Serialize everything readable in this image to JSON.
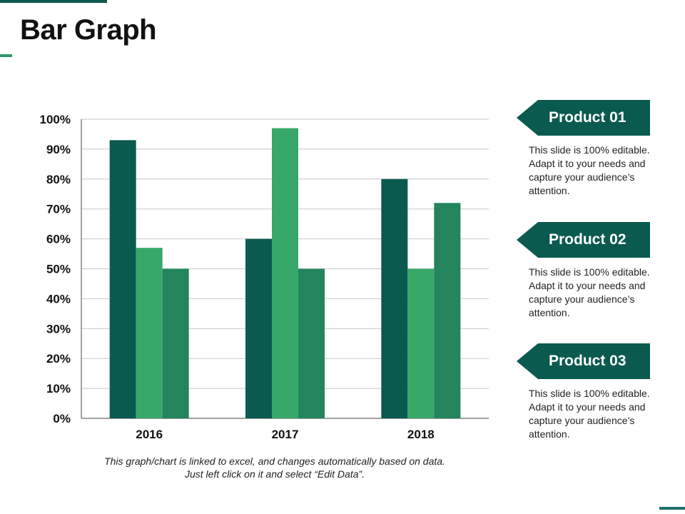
{
  "slide": {
    "title": "Bar Graph",
    "footnote": "This graph/chart is linked to excel, and changes automatically based on data. Just left click on it and select “Edit Data”."
  },
  "legend": [
    {
      "label": "Product 01",
      "color": "#0b5a4f",
      "description": "This slide is 100% editable. Adapt it to your needs and capture your audience’s attention."
    },
    {
      "label": "Product 02",
      "color": "#37a86a",
      "description": "This slide is 100% editable. Adapt it to your needs and capture your audience’s attention."
    },
    {
      "label": "Product 03",
      "color": "#23845e",
      "description": "This slide is 100% editable. Adapt it to your needs and capture your audience’s attention."
    }
  ],
  "chart_data": {
    "type": "bar",
    "title": "",
    "xlabel": "",
    "ylabel": "",
    "categories": [
      "2016",
      "2017",
      "2018"
    ],
    "series": [
      {
        "name": "Product 01",
        "values": [
          93,
          60,
          80
        ],
        "color": "#0b5a4f"
      },
      {
        "name": "Product 02",
        "values": [
          57,
          97,
          50
        ],
        "color": "#37a86a"
      },
      {
        "name": "Product 03",
        "values": [
          50,
          50,
          72
        ],
        "color": "#23845e"
      }
    ],
    "ylim": [
      0,
      100
    ],
    "yticks": [
      0,
      10,
      20,
      30,
      40,
      50,
      60,
      70,
      80,
      90,
      100
    ],
    "ytick_labels": [
      "0%",
      "10%",
      "20%",
      "30%",
      "40%",
      "50%",
      "60%",
      "70%",
      "80%",
      "90%",
      "100%"
    ],
    "grid": true,
    "legend_position": "right"
  }
}
